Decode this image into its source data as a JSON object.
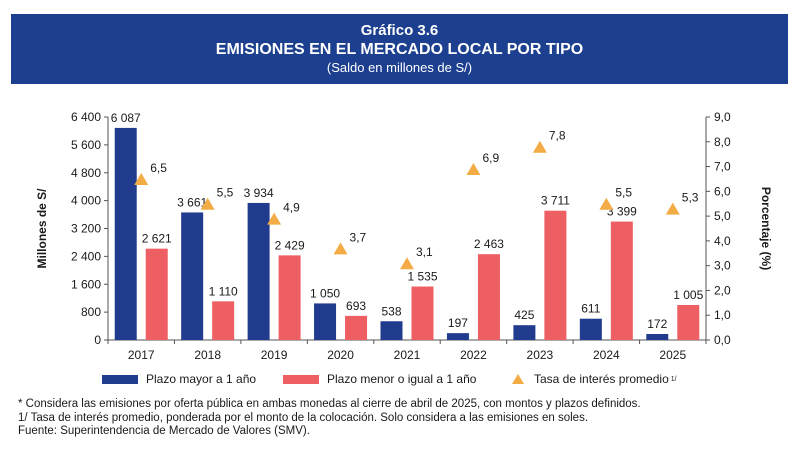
{
  "header": {
    "label": "Gráfico 3.6",
    "title": "EMISIONES EN EL MERCADO LOCAL POR TIPO",
    "subtitle": "(Saldo en millones de S/)"
  },
  "chart_data": {
    "type": "bar",
    "categories": [
      "2017",
      "2018",
      "2019",
      "2020",
      "2021",
      "2022",
      "2023",
      "2024",
      "2025"
    ],
    "series": [
      {
        "name": "Plazo mayor a 1 año",
        "type": "bar",
        "axis": "left",
        "color": "#213c8f",
        "values": [
          6087,
          3661,
          3934,
          1050,
          538,
          197,
          425,
          611,
          172
        ],
        "labels": [
          "6 087",
          "3 661",
          "3 934",
          "1 050",
          "538",
          "197",
          "425",
          "611",
          "172"
        ]
      },
      {
        "name": "Plazo menor o igual a 1 año",
        "type": "bar",
        "axis": "left",
        "color": "#ee5f63",
        "values": [
          2621,
          1110,
          2429,
          693,
          1535,
          2463,
          3711,
          3399,
          1005
        ],
        "labels": [
          "2 621",
          "1 110",
          "2 429",
          "693",
          "1 535",
          "2 463",
          "3 711",
          "3 399",
          "1 005"
        ]
      },
      {
        "name": "Tasa de interés promedio",
        "name_sup": "1/",
        "type": "scatter",
        "marker": "triangle",
        "axis": "right",
        "color": "#f3ac45",
        "values": [
          6.5,
          5.5,
          4.9,
          3.7,
          3.1,
          6.9,
          7.8,
          5.5,
          5.3
        ],
        "labels": [
          "6,5",
          "5,5",
          "4,9",
          "3,7",
          "3,1",
          "6,9",
          "7,8",
          "5,5",
          "5,3"
        ]
      }
    ],
    "ylabel": "Millones de S/",
    "ylim": [
      0,
      6400
    ],
    "yticks": [
      "0",
      "800",
      "1 600",
      "2 400",
      "3 200",
      "4 000",
      "4 800",
      "5 600",
      "6 400"
    ],
    "y2label": "Porcentaje (%)",
    "y2lim": [
      0,
      9
    ],
    "y2ticks": [
      "0,0",
      "1,0",
      "2,0",
      "3,0",
      "4,0",
      "5,0",
      "6,0",
      "7,0",
      "8,0",
      "9,0"
    ],
    "grid": false,
    "legend": "bottom"
  },
  "notes": [
    "* Considera las emisiones por oferta pública en ambas monedas al cierre de abril de 2025, con montos y plazos definidos.",
    "1/ Tasa de interés promedio, ponderada por el monto de la colocación. Solo considera a las emisiones en soles.",
    "Fuente: Superintendencia de Mercado de Valores (SMV)."
  ]
}
